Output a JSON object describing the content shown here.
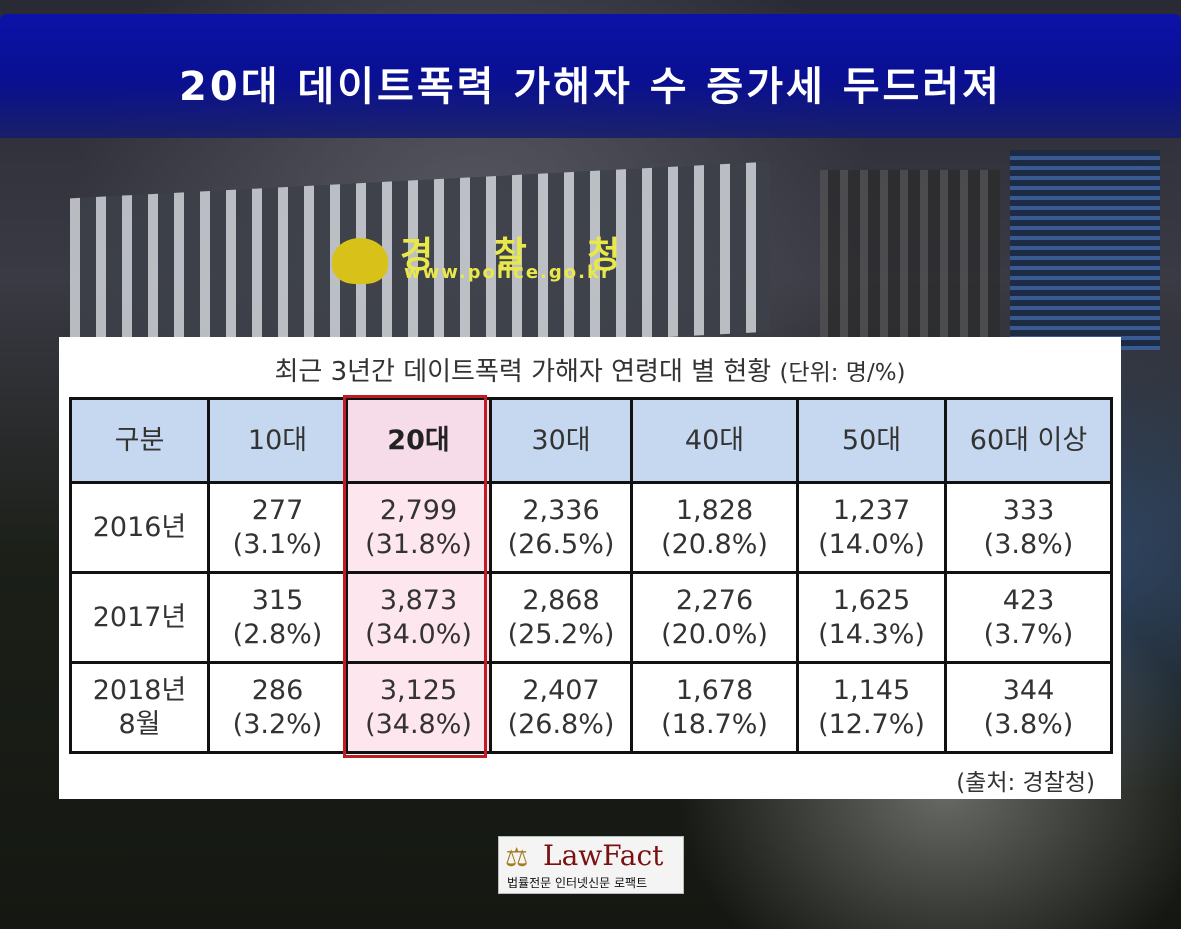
{
  "title": "20대 데이트폭력 가해자 수 증가세 두드러져",
  "background_sign": {
    "name": "경 찰 청",
    "url": "www.police.go.kr"
  },
  "table_caption": "최근 3년간 데이트폭력 가해자 연령대 별 현황",
  "table_unit": "(단위: 명/%)",
  "columns": [
    "구분",
    "10대",
    "20대",
    "30대",
    "40대",
    "50대",
    "60대 이상"
  ],
  "rows": [
    {
      "label": "2016년",
      "cells": [
        {
          "count": "277",
          "pct": "(3.1%)"
        },
        {
          "count": "2,799",
          "pct": "(31.8%)"
        },
        {
          "count": "2,336",
          "pct": "(26.5%)"
        },
        {
          "count": "1,828",
          "pct": "(20.8%)"
        },
        {
          "count": "1,237",
          "pct": "(14.0%)"
        },
        {
          "count": "333",
          "pct": "(3.8%)"
        }
      ]
    },
    {
      "label": "2017년",
      "cells": [
        {
          "count": "315",
          "pct": "(2.8%)"
        },
        {
          "count": "3,873",
          "pct": "(34.0%)"
        },
        {
          "count": "2,868",
          "pct": "(25.2%)"
        },
        {
          "count": "2,276",
          "pct": "(20.0%)"
        },
        {
          "count": "1,625",
          "pct": "(14.3%)"
        },
        {
          "count": "423",
          "pct": "(3.7%)"
        }
      ]
    },
    {
      "label": "2018년",
      "label2": "8월",
      "cells": [
        {
          "count": "286",
          "pct": "(3.2%)"
        },
        {
          "count": "3,125",
          "pct": "(34.8%)"
        },
        {
          "count": "2,407",
          "pct": "(26.8%)"
        },
        {
          "count": "1,678",
          "pct": "(18.7%)"
        },
        {
          "count": "1,145",
          "pct": "(12.7%)"
        },
        {
          "count": "344",
          "pct": "(3.8%)"
        }
      ]
    }
  ],
  "highlight_color": "#c01c24",
  "header_color": "#c5d8ef",
  "source": "(출처: 경찰청)",
  "logo": {
    "icon": "scales-icon",
    "name": "LawFact",
    "subtitle": "법률전문 인터넷신문 로팩트"
  }
}
